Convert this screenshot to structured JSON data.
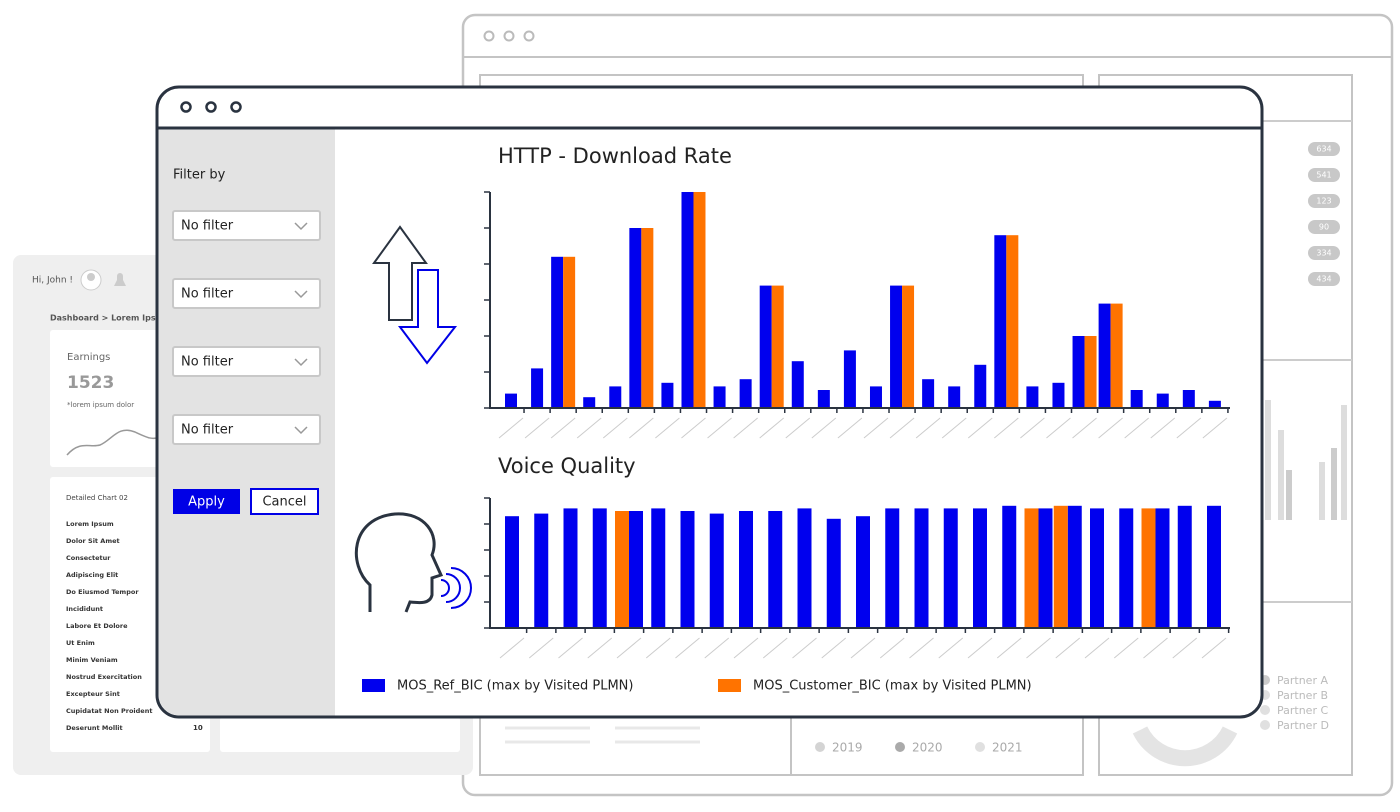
{
  "background_left": {
    "greeting": "Hi, John !",
    "breadcrumb": "Dashboard > Lorem Ipsu",
    "earnings_card": {
      "title": "Earnings",
      "value": 1523,
      "note": "*lorem ipsum dolor"
    },
    "detail_card": {
      "title": "Detailed Chart 02",
      "items": [
        "Lorem Ipsum",
        "Dolor Sit Amet",
        "Consectetur",
        "Adipiscing Elit",
        "Do Eiusmod Tempor",
        "Incididunt",
        "Labore Et Dolore",
        "Ut Enim",
        "Minim Veniam",
        "Nostrud Exercitation",
        "Excepteur Sint",
        "Cupidatat Non Proident",
        "Deserunt Mollit"
      ],
      "last_value": 10
    }
  },
  "background_right": {
    "badges": [
      634,
      541,
      123,
      90,
      334,
      434
    ],
    "years": [
      "2019",
      "2020",
      "2021"
    ],
    "partners": [
      "Partner A",
      "Partner B",
      "Partner C",
      "Partner D"
    ]
  },
  "filter_panel": {
    "title": "Filter by",
    "filters": [
      "No filter",
      "No filter",
      "No filter",
      "No filter"
    ],
    "apply": "Apply",
    "cancel": "Cancel"
  },
  "chart_data": [
    {
      "type": "bar",
      "title": "HTTP - Download Rate",
      "categories": [
        null,
        null,
        null,
        null,
        null,
        null,
        null,
        null,
        null,
        null,
        null,
        null,
        null,
        null,
        null,
        null,
        null,
        null,
        null,
        null,
        null,
        null,
        null,
        null,
        null,
        null,
        null,
        null
      ],
      "series": [
        {
          "color": "#0000ee",
          "values": [
            0.4,
            1.1,
            4.2,
            0.3,
            0.6,
            5.0,
            0.7,
            6.0,
            0.6,
            0.8,
            3.4,
            1.3,
            0.5,
            1.6,
            0.6,
            3.4,
            0.8,
            0.6,
            1.2,
            4.8,
            0.6,
            0.7,
            2.0,
            2.9,
            0.5,
            0.4,
            0.5,
            0.2
          ]
        },
        {
          "color": "#ff7300",
          "values": [
            null,
            null,
            4.2,
            null,
            null,
            5.0,
            null,
            6.0,
            null,
            null,
            3.4,
            null,
            null,
            null,
            null,
            3.4,
            null,
            null,
            null,
            4.8,
            null,
            null,
            2.0,
            2.9,
            null,
            null,
            null,
            null
          ]
        }
      ],
      "ylim": [
        0,
        6
      ],
      "yticks": [
        0,
        1,
        2,
        3,
        4,
        5,
        6
      ]
    },
    {
      "type": "bar",
      "title": "Voice Quality",
      "categories": [
        null,
        null,
        null,
        null,
        null,
        null,
        null,
        null,
        null,
        null,
        null,
        null,
        null,
        null,
        null,
        null,
        null,
        null,
        null,
        null,
        null,
        null,
        null,
        null,
        null
      ],
      "series": [
        {
          "name": "MOS_Ref_BIC (max by Visited PLMN)",
          "color": "#0000ee",
          "values": [
            4.3,
            4.4,
            4.6,
            4.6,
            4.5,
            4.6,
            4.5,
            4.4,
            4.5,
            4.5,
            4.6,
            4.2,
            4.3,
            4.6,
            4.6,
            4.6,
            4.6,
            4.7,
            4.6,
            4.7,
            4.6,
            4.6,
            4.6,
            4.7,
            4.7
          ]
        },
        {
          "name": "MOS_Customer_BIC (max by Visited PLMN)",
          "color": "#ff7300",
          "values": [
            null,
            null,
            null,
            null,
            4.5,
            null,
            null,
            null,
            null,
            null,
            null,
            null,
            null,
            null,
            null,
            null,
            null,
            null,
            4.6,
            4.7,
            null,
            null,
            4.6,
            null,
            null
          ]
        }
      ],
      "ylim": [
        0,
        5
      ],
      "yticks": [
        0,
        1,
        2,
        3,
        4,
        5
      ]
    }
  ]
}
